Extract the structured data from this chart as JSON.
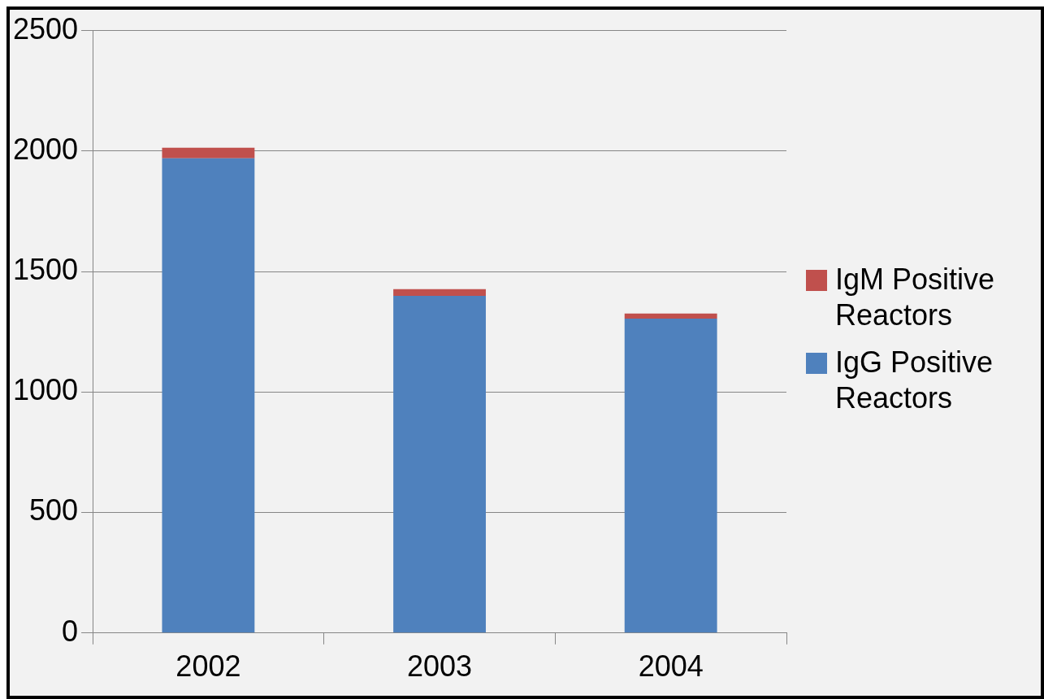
{
  "chart_data": {
    "type": "bar",
    "stacked": true,
    "categories": [
      "2002",
      "2003",
      "2004"
    ],
    "series": [
      {
        "name": "IgG Positive Reactors",
        "color": "#4f81bd",
        "values": [
          1970,
          1399,
          1305
        ]
      },
      {
        "name": "IgM Positive Reactors",
        "color": "#c0504d",
        "values": [
          44,
          28,
          21
        ]
      }
    ],
    "ylim": [
      0,
      2500
    ],
    "yticks": [
      0,
      500,
      1000,
      1500,
      2000,
      2500
    ],
    "grid": "y",
    "legend": "right"
  }
}
